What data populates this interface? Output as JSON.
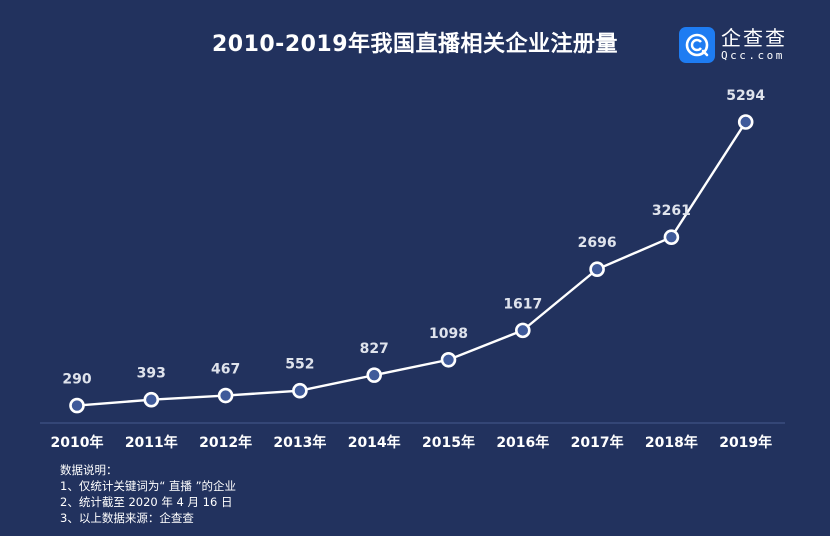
{
  "title": "2010-2019年我国直播相关企业注册量",
  "logo": {
    "name": "企查查",
    "domain": "Qcc.com",
    "color": "#1e7cf2"
  },
  "notes": {
    "heading": "数据说明：",
    "lines": [
      "1、仅统计关键词为“ 直播 ”的企业",
      "2、统计截至 2020 年 4 月 16 日",
      "3、以上数据来源：企查查"
    ]
  },
  "colors": {
    "background": "#22325e",
    "line": "#ffffff",
    "marker_fill": "#3f5a9a",
    "axis": "#3a4c7e",
    "label": "#dfe3ec"
  },
  "chart_data": {
    "type": "line",
    "title": "2010-2019年我国直播相关企业注册量",
    "xlabel": "",
    "ylabel": "",
    "categories": [
      "2010年",
      "2011年",
      "2012年",
      "2013年",
      "2014年",
      "2015年",
      "2016年",
      "2017年",
      "2018年",
      "2019年"
    ],
    "series": [
      {
        "name": "直播相关企业注册量",
        "values": [
          290,
          393,
          467,
          552,
          827,
          1098,
          1617,
          2696,
          3261,
          5294
        ]
      }
    ],
    "data_labels": true,
    "grid": false,
    "legend": "none",
    "ylim": [
      0,
      5294
    ]
  }
}
